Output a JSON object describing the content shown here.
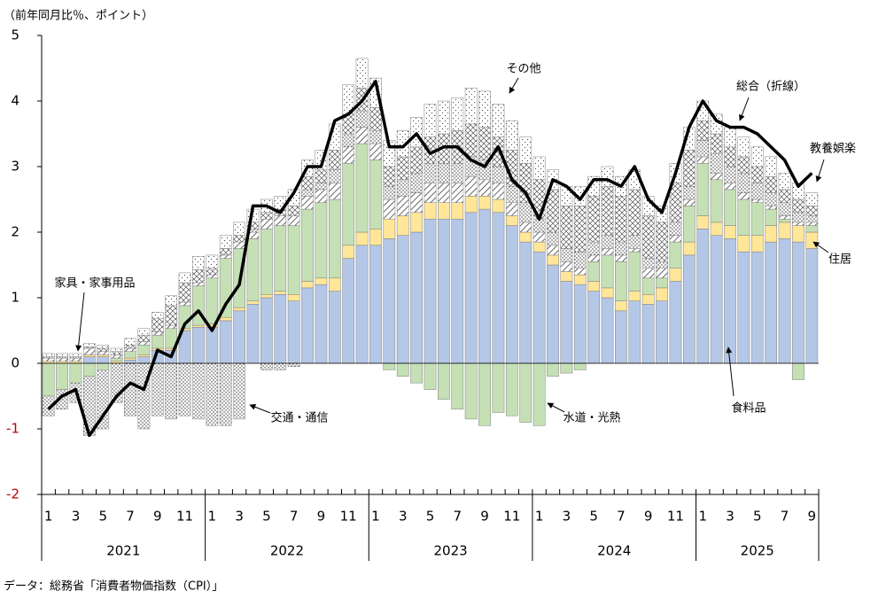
{
  "chart_data": {
    "type": "stacked_bar_line",
    "y_label": "（前年同月比％、ポイント）",
    "note": "データ：総務省「消費者物価指数（CPI）」",
    "ylim": [
      -2,
      5
    ],
    "yticks": [
      -2,
      -1,
      0,
      1,
      2,
      3,
      4,
      5
    ],
    "negative_tick_color": "#c00000",
    "categories": [
      "1",
      null,
      "3",
      null,
      "5",
      null,
      "7",
      null,
      "9",
      null,
      "11",
      null,
      "1",
      null,
      "3",
      null,
      "5",
      null,
      "7",
      null,
      "9",
      null,
      "11",
      null,
      "1",
      null,
      "3",
      null,
      "5",
      null,
      "7",
      null,
      "9",
      null,
      "11",
      null,
      "1",
      null,
      "3",
      null,
      "5",
      null,
      "7",
      null,
      "9",
      null,
      "11",
      null,
      "1",
      null,
      "3",
      null,
      "5",
      null,
      "7",
      null,
      "9"
    ],
    "years": [
      "2021",
      "2022",
      "2023",
      "2024",
      "2025"
    ],
    "series": [
      {
        "name": "食料品",
        "color": "#b4c7e7",
        "pattern": "solid",
        "values": [
          0,
          0,
          0,
          0.1,
          0.1,
          0,
          0.05,
          0.1,
          0.2,
          0.2,
          0.5,
          0.55,
          0.55,
          0.65,
          0.8,
          0.9,
          1.0,
          1.05,
          0.95,
          1.15,
          1.2,
          1.1,
          1.6,
          1.8,
          1.8,
          1.9,
          1.95,
          2.0,
          2.2,
          2.2,
          2.2,
          2.3,
          2.35,
          2.3,
          2.1,
          1.85,
          1.7,
          1.5,
          1.25,
          1.2,
          1.1,
          1.0,
          0.8,
          0.95,
          0.9,
          0.95,
          1.25,
          1.65,
          2.05,
          1.95,
          1.9,
          1.7,
          1.7,
          1.85,
          1.9,
          1.85,
          1.75
        ]
      },
      {
        "name": "住居",
        "color": "#ffe699",
        "pattern": "solid",
        "values": [
          0.03,
          0.03,
          0.03,
          0.03,
          0.03,
          0.03,
          0.03,
          0.03,
          0.03,
          0.03,
          0.03,
          0.03,
          0.05,
          0.05,
          0.05,
          0.05,
          0.05,
          0.05,
          0.1,
          0.1,
          0.1,
          0.2,
          0.2,
          0.2,
          0.25,
          0.3,
          0.3,
          0.3,
          0.25,
          0.25,
          0.25,
          0.25,
          0.2,
          0.2,
          0.15,
          0.15,
          0.15,
          0.15,
          0.15,
          0.15,
          0.15,
          0.15,
          0.15,
          0.15,
          0.15,
          0.2,
          0.2,
          0.2,
          0.2,
          0.2,
          0.2,
          0.25,
          0.25,
          0.25,
          0.25,
          0.25,
          0.25
        ]
      },
      {
        "name": "水道・光熱",
        "color": "#c5e0b4",
        "pattern": "solid",
        "values": [
          -0.5,
          -0.4,
          -0.3,
          -0.2,
          -0.1,
          0.05,
          0.1,
          0.15,
          0.2,
          0.3,
          0.35,
          0.6,
          0.7,
          0.9,
          0.9,
          0.95,
          1.0,
          1.0,
          1.05,
          1.1,
          1.15,
          1.2,
          1.25,
          1.35,
          1.05,
          -0.1,
          -0.2,
          -0.3,
          -0.4,
          -0.55,
          -0.7,
          -0.85,
          -0.95,
          -0.75,
          -0.8,
          -0.9,
          -0.95,
          -0.2,
          -0.15,
          -0.1,
          0.3,
          0.5,
          0.6,
          0.6,
          0.25,
          0.15,
          0.4,
          0.55,
          0.8,
          0.65,
          0.55,
          0.55,
          0.5,
          0.25,
          0.05,
          -0.25,
          0.1
        ]
      },
      {
        "name": "家具・家事用品",
        "color": "#ffffff",
        "pattern": "diagonal",
        "values": [
          0.05,
          0.05,
          0.05,
          0.1,
          0.05,
          0.05,
          0.05,
          0.05,
          0.05,
          0.05,
          0.05,
          0.05,
          0.05,
          0.05,
          0.1,
          0.1,
          0.15,
          0.15,
          0.15,
          0.2,
          0.2,
          0.25,
          0.25,
          0.25,
          0.25,
          0.3,
          0.3,
          0.3,
          0.3,
          0.3,
          0.3,
          0.3,
          0.25,
          0.25,
          0.2,
          0.15,
          0.15,
          0.15,
          0.15,
          0.1,
          0.1,
          0.1,
          0.1,
          0.05,
          0.15,
          0.15,
          0.1,
          0.1,
          0.1,
          0.1,
          0.1,
          0.1,
          0.05,
          0.05,
          0.05,
          0.05,
          0.05
        ]
      },
      {
        "name": "交通・通信",
        "color": "#ffffff",
        "pattern": "dots",
        "values": [
          -0.3,
          -0.3,
          -0.3,
          -0.9,
          -0.9,
          -0.6,
          -0.8,
          -1.0,
          -0.8,
          -0.85,
          -0.8,
          -0.85,
          -0.95,
          -0.95,
          -0.85,
          0.05,
          -0.1,
          -0.1,
          -0.05,
          0.1,
          0.1,
          0.2,
          0.2,
          0.25,
          0.2,
          0.2,
          0.25,
          0.3,
          0.3,
          0.3,
          0.3,
          0.3,
          0.3,
          0.25,
          0.25,
          0.3,
          0.2,
          0.2,
          0.2,
          0.25,
          0.2,
          0.2,
          0.2,
          0.2,
          0.15,
          0.1,
          0.2,
          0.2,
          0.25,
          0.3,
          0.25,
          0.3,
          0.25,
          0.2,
          0.2,
          0.15,
          0.1
        ]
      },
      {
        "name": "教養娯楽",
        "color": "#ffffff",
        "pattern": "crosshatch",
        "values": [
          0.02,
          0.02,
          0.02,
          0.02,
          0.05,
          0.05,
          0.05,
          0.1,
          0.2,
          0.3,
          0.3,
          0.2,
          0.1,
          0.1,
          0.1,
          0.1,
          0.1,
          0.1,
          0.15,
          0.2,
          0.2,
          0.3,
          0.3,
          0.35,
          0.35,
          0.3,
          0.35,
          0.4,
          0.4,
          0.45,
          0.5,
          0.5,
          0.5,
          0.45,
          0.55,
          0.6,
          0.6,
          0.65,
          0.65,
          0.7,
          0.7,
          0.75,
          0.7,
          0.7,
          0.65,
          0.6,
          0.6,
          0.55,
          0.3,
          0.3,
          0.3,
          0.25,
          0.25,
          0.25,
          0.2,
          0.2,
          0.15
        ]
      },
      {
        "name": "その他",
        "color": "#ffffff",
        "pattern": "sparse-dots",
        "values": [
          0.05,
          0.05,
          0.05,
          0.05,
          0.05,
          0.05,
          0.1,
          0.1,
          0.1,
          0.15,
          0.15,
          0.2,
          0.2,
          0.2,
          0.2,
          0.2,
          0.2,
          0.2,
          0.25,
          0.25,
          0.3,
          0.4,
          0.45,
          0.45,
          0.45,
          0.4,
          0.4,
          0.45,
          0.5,
          0.5,
          0.5,
          0.55,
          0.55,
          0.5,
          0.45,
          0.4,
          0.35,
          0.3,
          0.3,
          0.3,
          0.3,
          0.3,
          0.3,
          0.3,
          0.3,
          0.25,
          0.3,
          0.35,
          0.3,
          0.3,
          0.3,
          0.3,
          0.3,
          0.3,
          0.25,
          0.25,
          0.2
        ]
      }
    ],
    "line": {
      "name": "総合（折線）",
      "color": "#000000",
      "values": [
        -0.7,
        -0.5,
        -0.4,
        -1.1,
        -0.8,
        -0.5,
        -0.3,
        -0.4,
        0.2,
        0.1,
        0.6,
        0.8,
        0.5,
        0.9,
        1.2,
        2.4,
        2.4,
        2.3,
        2.6,
        3.0,
        3.0,
        3.7,
        3.8,
        4.0,
        4.3,
        3.3,
        3.3,
        3.5,
        3.2,
        3.3,
        3.3,
        3.1,
        3.0,
        3.3,
        2.8,
        2.6,
        2.2,
        2.8,
        2.7,
        2.5,
        2.8,
        2.8,
        2.7,
        3.0,
        2.5,
        2.3,
        2.9,
        3.6,
        4.0,
        3.7,
        3.6,
        3.6,
        3.5,
        3.3,
        3.1,
        2.7,
        2.9
      ]
    }
  }
}
